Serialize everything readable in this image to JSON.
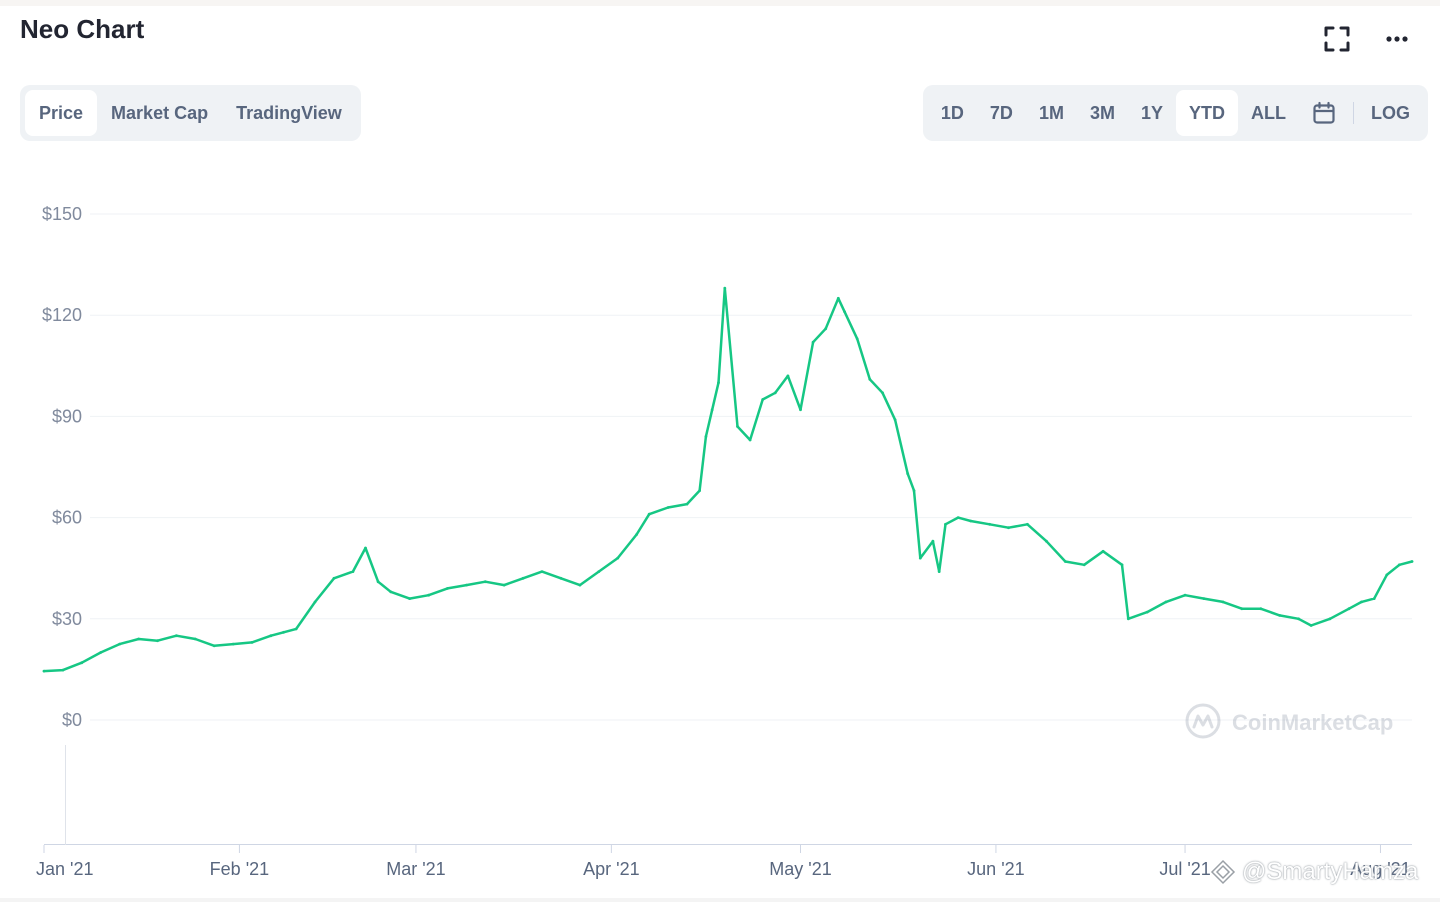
{
  "header": {
    "title": "Neo Chart",
    "fullscreen_icon": "fullscreen-icon",
    "more_icon": "more-dots-icon"
  },
  "tabs": [
    {
      "label": "Price",
      "active": true
    },
    {
      "label": "Market Cap",
      "active": false
    },
    {
      "label": "TradingView",
      "active": false
    }
  ],
  "ranges": [
    {
      "label": "1D",
      "active": false
    },
    {
      "label": "7D",
      "active": false
    },
    {
      "label": "1M",
      "active": false
    },
    {
      "label": "3M",
      "active": false
    },
    {
      "label": "1Y",
      "active": false
    },
    {
      "label": "YTD",
      "active": true
    },
    {
      "label": "ALL",
      "active": false
    }
  ],
  "calendar_icon": "calendar-icon",
  "log_label": "LOG",
  "brand_watermark": "CoinMarketCap",
  "footer_watermark": "@SmartyHamza",
  "colors": {
    "line": "#16c784",
    "text_muted": "#58667e",
    "grid": "#eff2f5"
  },
  "chart_data": {
    "type": "line",
    "title": "",
    "xlabel": "",
    "ylabel": "",
    "ylim": [
      0,
      150
    ],
    "yticks": [
      0,
      30,
      60,
      90,
      120,
      150
    ],
    "ytick_labels": [
      "$0",
      "$30",
      "$60",
      "$90",
      "$120",
      "$150"
    ],
    "xlim": [
      "2021-01-01",
      "2021-08-06"
    ],
    "xticks": [
      "2021-01-01",
      "2021-02-01",
      "2021-03-01",
      "2021-04-01",
      "2021-05-01",
      "2021-06-01",
      "2021-07-01",
      "2021-08-01"
    ],
    "xtick_labels": [
      "Jan '21",
      "Feb '21",
      "Mar '21",
      "Apr '21",
      "May '21",
      "Jun '21",
      "Jul '21",
      "Aug '21"
    ],
    "grid": true,
    "series": [
      {
        "x": [
          "2021-01-01",
          "2021-01-04",
          "2021-01-07",
          "2021-01-10",
          "2021-01-13",
          "2021-01-16",
          "2021-01-19",
          "2021-01-22",
          "2021-01-25",
          "2021-01-28",
          "2021-01-31",
          "2021-02-03",
          "2021-02-06",
          "2021-02-08",
          "2021-02-10",
          "2021-02-13",
          "2021-02-16",
          "2021-02-19",
          "2021-02-21",
          "2021-02-23",
          "2021-02-25",
          "2021-02-28",
          "2021-03-03",
          "2021-03-06",
          "2021-03-09",
          "2021-03-12",
          "2021-03-15",
          "2021-03-18",
          "2021-03-21",
          "2021-03-24",
          "2021-03-27",
          "2021-03-30",
          "2021-04-02",
          "2021-04-05",
          "2021-04-07",
          "2021-04-10",
          "2021-04-13",
          "2021-04-15",
          "2021-04-16",
          "2021-04-17",
          "2021-04-18",
          "2021-04-19",
          "2021-04-21",
          "2021-04-23",
          "2021-04-25",
          "2021-04-27",
          "2021-04-29",
          "2021-05-01",
          "2021-05-03",
          "2021-05-05",
          "2021-05-07",
          "2021-05-08",
          "2021-05-10",
          "2021-05-12",
          "2021-05-14",
          "2021-05-16",
          "2021-05-18",
          "2021-05-19",
          "2021-05-20",
          "2021-05-22",
          "2021-05-23",
          "2021-05-24",
          "2021-05-26",
          "2021-05-28",
          "2021-05-31",
          "2021-06-03",
          "2021-06-06",
          "2021-06-09",
          "2021-06-12",
          "2021-06-15",
          "2021-06-18",
          "2021-06-21",
          "2021-06-22",
          "2021-06-25",
          "2021-06-28",
          "2021-07-01",
          "2021-07-04",
          "2021-07-07",
          "2021-07-10",
          "2021-07-13",
          "2021-07-16",
          "2021-07-19",
          "2021-07-21",
          "2021-07-24",
          "2021-07-27",
          "2021-07-29",
          "2021-07-31",
          "2021-08-02",
          "2021-08-04",
          "2021-08-06"
        ],
        "values": [
          14.5,
          14.8,
          17,
          20,
          22.5,
          24,
          23.5,
          25,
          24,
          22,
          22.5,
          23,
          25,
          26,
          27,
          35,
          42,
          44,
          51,
          41,
          38,
          36,
          37,
          39,
          40,
          41,
          40,
          42,
          44,
          42,
          40,
          44,
          48,
          55,
          61,
          63,
          64,
          68,
          84,
          92,
          100,
          128,
          87,
          83,
          95,
          97,
          102,
          92,
          112,
          116,
          125,
          121,
          113,
          101,
          97,
          89,
          73,
          68,
          48,
          53,
          44,
          58,
          60,
          59,
          58,
          57,
          58,
          53,
          47,
          46,
          50,
          46,
          30,
          32,
          35,
          37,
          36,
          35,
          33,
          33,
          31,
          30,
          28,
          30,
          33,
          35,
          36,
          43,
          46,
          47
        ]
      }
    ]
  }
}
